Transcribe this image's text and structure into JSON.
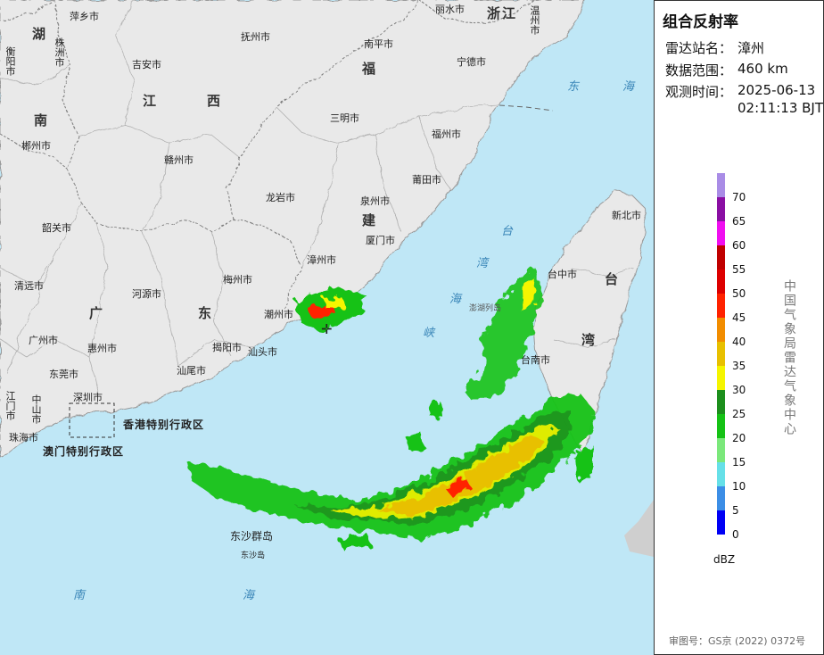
{
  "panel": {
    "title": "组合反射率",
    "station_label": "雷达站名：",
    "station_value": "漳州",
    "range_label": "数据范围：",
    "range_value": "460 km",
    "time_label": "观测时间：",
    "time_date": "2025-06-13",
    "time_clock": "02:11:13 BJT",
    "unit": "dBZ",
    "vendor": "中国气象局雷达气象中心",
    "approval": "审图号：GS京 (2022) 0372号"
  },
  "legend": [
    {
      "label": "70",
      "color": "#a98ce6"
    },
    {
      "label": "65",
      "color": "#8a0fa3"
    },
    {
      "label": "60",
      "color": "#f00ff0"
    },
    {
      "label": "55",
      "color": "#c00000"
    },
    {
      "label": "50",
      "color": "#dd0000"
    },
    {
      "label": "45",
      "color": "#ff2200"
    },
    {
      "label": "40",
      "color": "#f28d00"
    },
    {
      "label": "35",
      "color": "#e8c000"
    },
    {
      "label": "30",
      "color": "#f5f500"
    },
    {
      "label": "25",
      "color": "#1d8f1d"
    },
    {
      "label": "20",
      "color": "#15c215"
    },
    {
      "label": "15",
      "color": "#7be87b"
    },
    {
      "label": "10",
      "color": "#66e0e8"
    },
    {
      "label": "5",
      "color": "#3c8ee6"
    },
    {
      "label": "0",
      "color": "#0000f5"
    }
  ],
  "map": {
    "cities": [
      "萍乡市",
      "丽水市",
      "温州市",
      "株洲市",
      "抚州市",
      "南平市",
      "宁德市",
      "衡阳市",
      "吉安市",
      "三明市",
      "福州市",
      "郴州市",
      "赣州市",
      "莆田市",
      "龙岩市",
      "泉州市",
      "新北市",
      "韶关市",
      "漳州市",
      "厦门市",
      "梅州市",
      "台中市",
      "清远市",
      "河源市",
      "潮州市",
      "广州市",
      "惠州市",
      "揭阳市",
      "汕头市",
      "东莞市",
      "台南市",
      "汕尾市",
      "深圳市",
      "中山市",
      "江门市",
      "珠海市"
    ],
    "provinces": [
      "湖",
      "南",
      "江",
      "西",
      "福",
      "建",
      "广",
      "东",
      "浙江",
      "台",
      "湾"
    ],
    "regions": [
      "香港特别行政区",
      "澳门特别行政区"
    ],
    "islands": [
      "东沙群岛",
      "东沙岛",
      "澎湖列岛"
    ],
    "seas": [
      "东",
      "海",
      "台",
      "湾",
      "海",
      "峡",
      "南",
      "海"
    ]
  }
}
